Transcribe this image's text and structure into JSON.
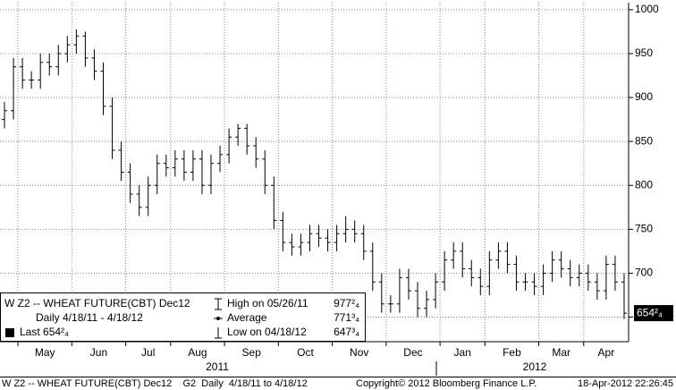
{
  "chart_data": {
    "type": "ohlc",
    "color": "#000000",
    "grid": true,
    "ylim": [
      622,
      1008
    ],
    "yticks": [
      650,
      700,
      750,
      800,
      850,
      900,
      950,
      1000
    ],
    "categories": [
      null,
      null,
      "May",
      null,
      null,
      null,
      null,
      null,
      "Jun",
      null,
      null,
      null,
      null,
      null,
      "Jul",
      null,
      null,
      null,
      null,
      "Aug",
      null,
      null,
      null,
      null,
      null,
      "Sep",
      null,
      null,
      null,
      null,
      null,
      "Oct",
      null,
      null,
      null,
      null,
      null,
      "Nov",
      null,
      null,
      null,
      null,
      null,
      "Dec",
      null,
      null,
      null,
      null,
      null,
      "Jan",
      null,
      null,
      null,
      null,
      "Feb",
      null,
      null,
      null,
      null,
      null,
      "Mar",
      null,
      null,
      null,
      null,
      "Apr",
      null,
      null,
      null,
      null
    ],
    "years": [
      "2011",
      "2012"
    ],
    "series": [
      {
        "open": [
          875,
          885,
          935,
          920,
          920,
          940,
          935,
          950,
          960,
          970,
          945,
          930,
          890,
          840,
          815,
          790,
          775,
          800,
          825,
          820,
          830,
          815,
          830,
          800,
          825,
          835,
          855,
          865,
          845,
          830,
          800,
          760,
          735,
          730,
          735,
          745,
          740,
          735,
          745,
          750,
          745,
          725,
          690,
          665,
          665,
          695,
          680,
          660,
          670,
          690,
          715,
          725,
          705,
          695,
          685,
          715,
          725,
          710,
          690,
          690,
          685,
          700,
          715,
          705,
          695,
          700,
          690,
          680,
          710,
          690
        ],
        "high": [
          895,
          945,
          945,
          930,
          950,
          950,
          960,
          970,
          977.5,
          975,
          955,
          940,
          900,
          850,
          825,
          800,
          810,
          835,
          835,
          840,
          840,
          840,
          840,
          835,
          845,
          865,
          870,
          870,
          855,
          840,
          810,
          770,
          745,
          745,
          755,
          755,
          750,
          755,
          765,
          760,
          755,
          735,
          700,
          675,
          705,
          705,
          690,
          680,
          700,
          725,
          735,
          735,
          715,
          705,
          725,
          735,
          735,
          720,
          700,
          700,
          710,
          725,
          725,
          715,
          710,
          710,
          700,
          720,
          720,
          700
        ],
        "low": [
          865,
          875,
          910,
          910,
          910,
          925,
          925,
          940,
          950,
          935,
          920,
          880,
          830,
          805,
          780,
          765,
          765,
          790,
          810,
          810,
          805,
          805,
          790,
          790,
          815,
          825,
          845,
          835,
          820,
          790,
          750,
          725,
          720,
          720,
          725,
          730,
          725,
          725,
          735,
          735,
          715,
          680,
          655,
          655,
          655,
          670,
          650,
          650,
          660,
          680,
          705,
          695,
          685,
          675,
          675,
          705,
          700,
          680,
          680,
          675,
          675,
          690,
          695,
          685,
          685,
          680,
          670,
          670,
          680,
          647.75
        ],
        "close": [
          885,
          935,
          920,
          920,
          940,
          935,
          950,
          960,
          970,
          945,
          930,
          890,
          840,
          815,
          790,
          775,
          800,
          825,
          820,
          830,
          815,
          830,
          800,
          825,
          835,
          855,
          865,
          845,
          830,
          800,
          760,
          735,
          730,
          735,
          745,
          740,
          735,
          745,
          750,
          745,
          725,
          690,
          665,
          665,
          695,
          680,
          660,
          670,
          690,
          715,
          725,
          705,
          695,
          685,
          715,
          725,
          710,
          690,
          690,
          685,
          700,
          715,
          705,
          695,
          700,
          690,
          680,
          710,
          690,
          654.5
        ]
      }
    ],
    "last_label": "654²₄",
    "info_box": {
      "title": "W Z2 -- WHEAT FUTURE(CBT) Dec12",
      "period": "Daily 4/18/11 - 4/18/12",
      "last": "Last 654²₄",
      "stats": [
        {
          "label": "High on 05/26/11",
          "value": "977²₄"
        },
        {
          "label": "Average",
          "value": "771³₄"
        },
        {
          "label": "Low on 04/18/12",
          "value": "647³₄"
        }
      ]
    }
  },
  "footer": {
    "left": "W Z2 -- WHEAT FUTURE(CBT) Dec12    G2  Daily  4/18/11 to 4/18/12",
    "center": "Copyright© 2012 Bloomberg Finance L.P.",
    "right": "18-Apr-2012 22:26:45"
  }
}
